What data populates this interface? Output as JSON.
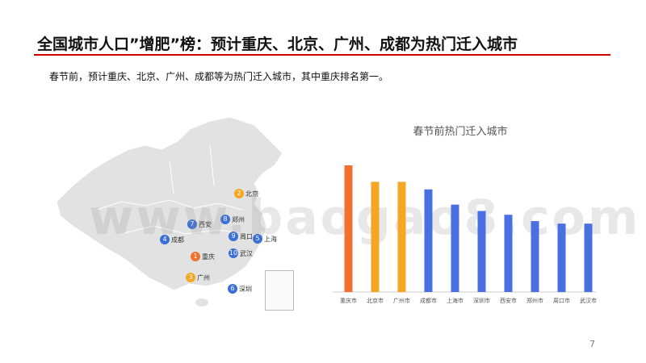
{
  "header": {
    "title": "全国城市人口”增肥”榜：预计重庆、北京、广州、成都为热门迁入城市",
    "subtitle": "春节前，预计重庆、北京、广州、成都等为热门迁入城市，其中重庆排名第一。"
  },
  "map": {
    "markers": [
      {
        "rank": "1",
        "city": "重庆",
        "color": "#f07030"
      },
      {
        "rank": "2",
        "city": "北京",
        "color": "#f5a623"
      },
      {
        "rank": "3",
        "city": "广州",
        "color": "#f5a623"
      },
      {
        "rank": "4",
        "city": "成都",
        "color": "#3b6fd8"
      },
      {
        "rank": "5",
        "city": "上海",
        "color": "#3b6fd8"
      },
      {
        "rank": "6",
        "city": "深圳",
        "color": "#3b6fd8"
      },
      {
        "rank": "7",
        "city": "西安",
        "color": "#3b6fd8"
      },
      {
        "rank": "8",
        "city": "郑州",
        "color": "#3b6fd8"
      },
      {
        "rank": "9",
        "city": "周口",
        "color": "#3b6fd8"
      },
      {
        "rank": "10",
        "city": "武汉",
        "color": "#3b6fd8"
      }
    ]
  },
  "chart_data": {
    "type": "bar",
    "title": "春节前热门迁入城市",
    "categories": [
      "重庆市",
      "北京市",
      "广州市",
      "成都市",
      "上海市",
      "深圳市",
      "西安市",
      "郑州市",
      "周口市",
      "武汉市"
    ],
    "values": [
      100,
      87,
      87,
      81,
      69,
      64,
      61,
      56,
      54,
      54
    ],
    "colors": [
      "#f07030",
      "#f5a623",
      "#f5a623",
      "#4a6fe3",
      "#4a6fe3",
      "#4a6fe3",
      "#4a6fe3",
      "#4a6fe3",
      "#4a6fe3",
      "#4a6fe3"
    ],
    "xlabel": "",
    "ylabel": "",
    "ylim": [
      0,
      100
    ],
    "grid": false,
    "legend": "none"
  },
  "watermark": "www.baogao8.com",
  "page_number": "7"
}
